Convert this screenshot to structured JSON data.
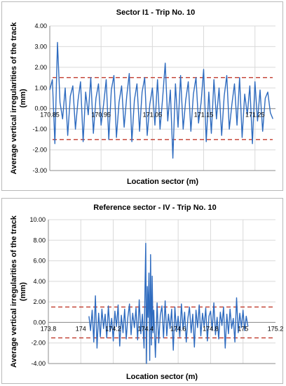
{
  "chart_data": [
    {
      "type": "line",
      "title": "Sector I1 - Trip No. 10",
      "xlabel": "Location sector (m)",
      "ylabel": "Average vertical irregularities of the track (mm)",
      "ylim": [
        -3.0,
        4.0
      ],
      "ytick_labels": [
        "4.00",
        "3.00",
        "2.00",
        "1.00",
        "0.00",
        "-1.00",
        "-2.00",
        "-3.00"
      ],
      "xlim": [
        170.85,
        171.29
      ],
      "x_tick_labels": [
        "170.85",
        "170.95",
        "171.05",
        "171.15",
        "171.25"
      ],
      "x_tick_values": [
        170.85,
        170.95,
        171.05,
        171.15,
        171.25
      ],
      "series": [
        {
          "color": "#2e6bbf",
          "x": [
            170.85,
            170.855,
            170.86,
            170.865,
            170.87,
            170.875,
            170.88,
            170.885,
            170.89,
            170.895,
            170.9,
            170.905,
            170.91,
            170.915,
            170.92,
            170.925,
            170.93,
            170.935,
            170.94,
            170.945,
            170.95,
            170.955,
            170.96,
            170.965,
            170.97,
            170.975,
            170.98,
            170.985,
            170.99,
            170.995,
            171.0,
            171.005,
            171.01,
            171.015,
            171.02,
            171.025,
            171.03,
            171.035,
            171.04,
            171.045,
            171.05,
            171.055,
            171.06,
            171.065,
            171.07,
            171.075,
            171.08,
            171.085,
            171.09,
            171.095,
            171.1,
            171.105,
            171.11,
            171.115,
            171.12,
            171.125,
            171.13,
            171.135,
            171.14,
            171.145,
            171.15,
            171.155,
            171.16,
            171.165,
            171.17,
            171.175,
            171.18,
            171.185,
            171.19,
            171.195,
            171.2,
            171.205,
            171.21,
            171.215,
            171.22,
            171.225,
            171.23,
            171.235,
            171.24,
            171.245,
            171.25,
            171.255,
            171.26,
            171.265,
            171.27,
            171.275,
            171.28,
            171.285
          ],
          "values": [
            0.9,
            1.4,
            -1.7,
            3.2,
            0.3,
            -0.5,
            1.0,
            -1.3,
            0.6,
            1.1,
            -1.0,
            0.4,
            1.3,
            -1.6,
            0.8,
            -0.3,
            1.5,
            -1.2,
            0.5,
            1.2,
            -0.8,
            0.2,
            1.4,
            -1.5,
            0.9,
            1.6,
            -1.4,
            0.3,
            1.1,
            -0.9,
            0.6,
            1.7,
            -1.6,
            0.4,
            1.2,
            -1.1,
            0.8,
            1.5,
            -1.3,
            0.2,
            1.0,
            -0.8,
            1.4,
            -1.0,
            0.5,
            2.2,
            -0.6,
            0.9,
            -2.4,
            1.2,
            -0.9,
            1.6,
            -1.0,
            0.4,
            1.3,
            -1.1,
            0.7,
            1.5,
            -0.7,
            0.3,
            1.9,
            -1.6,
            0.8,
            -1.2,
            1.4,
            -0.5,
            1.0,
            -1.3,
            0.6,
            1.6,
            -1.0,
            0.2,
            1.2,
            -0.8,
            1.5,
            -1.4,
            0.7,
            -0.3,
            1.1,
            -1.7,
            1.3,
            -0.6,
            0.9,
            -1.1,
            0.5,
            0.8,
            -0.2,
            -0.5
          ]
        }
      ],
      "thresholds": [
        1.5,
        -1.5
      ],
      "threshold_color": "#c0392b"
    },
    {
      "type": "line",
      "title": "Reference sector - IV - Trip No. 10",
      "xlabel": "Location sector (m)",
      "ylabel": "Average vertical irregularities of the track (mm)",
      "ylim": [
        -4.0,
        10.0
      ],
      "ytick_labels": [
        "10.00",
        "8.00",
        "6.00",
        "4.00",
        "2.00",
        "0.00",
        "-2.00",
        "-4.00"
      ],
      "xlim": [
        173.8,
        175.2
      ],
      "x_tick_labels": [
        "173.8",
        "174",
        "174.2",
        "174.4",
        "174.6",
        "174.8",
        "175",
        "175.2"
      ],
      "x_tick_values": [
        173.8,
        174.0,
        174.2,
        174.4,
        174.6,
        174.8,
        175.0,
        175.2
      ],
      "series": [
        {
          "color": "#2e6bbf",
          "x": [
            174.05,
            174.06,
            174.07,
            174.08,
            174.09,
            174.1,
            174.11,
            174.12,
            174.13,
            174.14,
            174.15,
            174.16,
            174.17,
            174.18,
            174.19,
            174.2,
            174.21,
            174.22,
            174.23,
            174.24,
            174.25,
            174.26,
            174.27,
            174.28,
            174.29,
            174.3,
            174.31,
            174.32,
            174.33,
            174.34,
            174.35,
            174.36,
            174.37,
            174.38,
            174.39,
            174.4,
            174.405,
            174.41,
            174.415,
            174.42,
            174.425,
            174.43,
            174.435,
            174.44,
            174.445,
            174.45,
            174.46,
            174.47,
            174.48,
            174.49,
            174.5,
            174.51,
            174.52,
            174.53,
            174.54,
            174.55,
            174.56,
            174.57,
            174.58,
            174.59,
            174.6,
            174.61,
            174.62,
            174.63,
            174.64,
            174.65,
            174.66,
            174.67,
            174.68,
            174.69,
            174.7,
            174.71,
            174.72,
            174.73,
            174.74,
            174.75,
            174.76,
            174.77,
            174.78,
            174.79,
            174.8,
            174.81,
            174.82,
            174.83,
            174.84,
            174.85,
            174.86,
            174.87,
            174.88,
            174.89,
            174.9,
            174.91,
            174.92,
            174.93,
            174.94,
            174.95,
            174.96,
            174.97,
            174.98,
            174.99,
            175.0,
            175.01,
            175.02,
            175.03
          ],
          "values": [
            0.6,
            -0.8,
            1.2,
            -1.9,
            2.6,
            -2.5,
            0.9,
            -1.4,
            1.3,
            -0.6,
            0.8,
            -1.5,
            1.6,
            -0.9,
            0.4,
            -1.8,
            1.1,
            -0.4,
            1.7,
            -2.3,
            0.7,
            -1.0,
            1.3,
            -1.6,
            0.5,
            1.8,
            -1.2,
            0.9,
            -0.5,
            1.4,
            -1.7,
            2.2,
            -1.1,
            0.8,
            -2.5,
            7.7,
            -4.0,
            3.5,
            0.5,
            4.8,
            -3.7,
            6.6,
            -2.2,
            4.5,
            -1.0,
            1.2,
            -3.4,
            1.9,
            -2.0,
            0.7,
            1.6,
            -1.5,
            2.1,
            -1.3,
            0.8,
            -0.6,
            1.3,
            -2.7,
            1.5,
            -0.9,
            0.6,
            -1.4,
            1.8,
            -0.7,
            1.0,
            -1.9,
            0.4,
            1.5,
            -1.0,
            0.8,
            -2.4,
            1.2,
            -0.5,
            1.7,
            -1.3,
            0.9,
            -0.4,
            1.4,
            -1.8,
            0.6,
            1.1,
            -0.8,
            1.9,
            -1.2,
            0.5,
            -1.6,
            1.0,
            -0.3,
            1.5,
            -2.5,
            0.8,
            -1.1,
            1.3,
            -0.6,
            0.4,
            -1.9,
            2.4,
            -1.0,
            0.9,
            -0.5,
            1.2,
            -0.8,
            0.6,
            -0.4
          ]
        }
      ],
      "thresholds": [
        1.5,
        -1.5
      ],
      "threshold_color": "#c0392b"
    }
  ]
}
